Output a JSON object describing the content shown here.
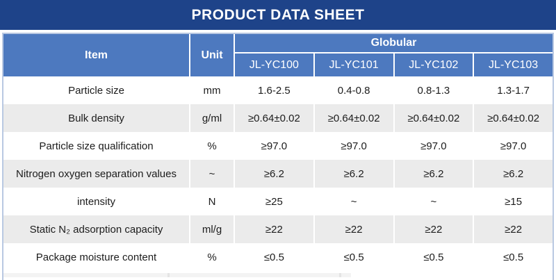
{
  "banner": {
    "title": "PRODUCT DATA SHEET"
  },
  "table": {
    "item_header": "Item",
    "unit_header": "Unit",
    "group_header": "Globular",
    "models": [
      "JL-YC100",
      "JL-YC101",
      "JL-YC102",
      "JL-YC103"
    ],
    "rows": [
      {
        "item": "Particle size",
        "unit": "mm",
        "values": [
          "1.6-2.5",
          "0.4-0.8",
          "0.8-1.3",
          "1.3-1.7"
        ]
      },
      {
        "item": "Bulk density",
        "unit": "g/ml",
        "values": [
          "≥0.64±0.02",
          "≥0.64±0.02",
          "≥0.64±0.02",
          "≥0.64±0.02"
        ]
      },
      {
        "item": "Particle size qualification",
        "unit": "%",
        "values": [
          "≥97.0",
          "≥97.0",
          "≥97.0",
          "≥97.0"
        ]
      },
      {
        "item": "Nitrogen oxygen separation values",
        "unit": "~",
        "values": [
          "≥6.2",
          "≥6.2",
          "≥6.2",
          "≥6.2"
        ]
      },
      {
        "item": "intensity",
        "unit": "N",
        "values": [
          "≥25",
          "~",
          "~",
          "≥15"
        ]
      },
      {
        "item": "Static N₂ adsorption capacity",
        "unit": "ml/g",
        "values": [
          "≥22",
          "≥22",
          "≥22",
          "≥22"
        ]
      },
      {
        "item": "Package moisture content",
        "unit": "%",
        "values": [
          "≤0.5",
          "≤0.5",
          "≤0.5",
          "≤0.5"
        ]
      }
    ]
  },
  "colors": {
    "banner_bg": "#1e4389",
    "header_bg": "#4d79bf",
    "row_alt_bg": "#ebebeb",
    "table_border": "#b9c8e2",
    "text": "#1c1c1c",
    "header_text": "#ffffff"
  }
}
